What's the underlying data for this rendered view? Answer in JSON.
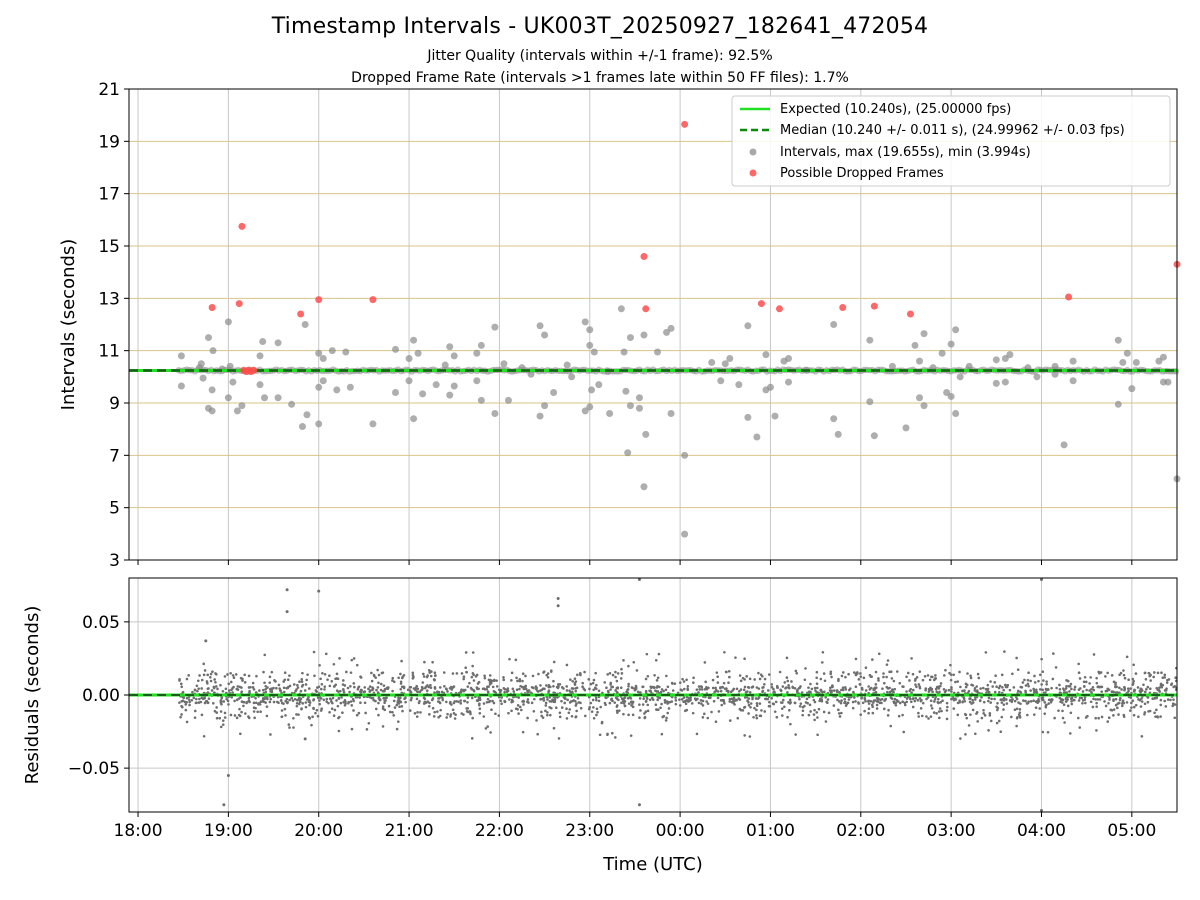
{
  "title": "Timestamp Intervals - UK003T_20250927_182641_472054",
  "subtitle_1": "Jitter Quality (intervals within +/-1 frame): 92.5%",
  "subtitle_2": "Dropped Frame Rate (intervals >1 frames late within 50 FF files): 1.7%",
  "colors": {
    "expected": "#22e022",
    "median": "#0a8a0a",
    "intervals": "#8c8c8c",
    "dropped": "#ff4d4d",
    "hgrid": "#d8c486",
    "vgrid": "#c8c8c8",
    "residual": "#6e6e6e"
  },
  "chart_data": [
    {
      "type": "scatter",
      "name": "intervals",
      "title": "Timestamp Intervals - UK003T_20250927_182641_472054",
      "xlabel": "",
      "ylabel": "Intervals (seconds)",
      "ylim": [
        3,
        21
      ],
      "yticks": [
        3,
        5,
        7,
        9,
        11,
        13,
        15,
        17,
        19,
        21
      ],
      "xlim_hours": [
        17.9,
        29.5
      ],
      "x_tick_hours": [
        18,
        19,
        20,
        21,
        22,
        23,
        24,
        25,
        26,
        27,
        28,
        29
      ],
      "grid": true,
      "legend_position": "top-right",
      "legend": [
        "Expected (10.240s), (25.00000 fps)",
        "Median (10.240 +/- 0.011 s), (24.99962 +/- 0.03 fps)",
        "Intervals, max (19.655s), min (3.994s)",
        "Possible Dropped Frames"
      ],
      "expected": 10.24,
      "median": 10.24,
      "series": [
        {
          "name": "Intervals",
          "points": [
            [
              18.48,
              10.8
            ],
            [
              18.48,
              9.65
            ],
            [
              18.68,
              10.35
            ],
            [
              18.7,
              10.5
            ],
            [
              18.72,
              9.95
            ],
            [
              18.78,
              11.5
            ],
            [
              18.78,
              8.8
            ],
            [
              18.82,
              8.7
            ],
            [
              18.82,
              9.5
            ],
            [
              18.83,
              11.0
            ],
            [
              18.93,
              10.3
            ],
            [
              19.0,
              9.2
            ],
            [
              19.0,
              12.1
            ],
            [
              19.02,
              10.4
            ],
            [
              19.05,
              9.8
            ],
            [
              19.1,
              8.7
            ],
            [
              19.15,
              8.9
            ],
            [
              19.35,
              10.8
            ],
            [
              19.35,
              9.7
            ],
            [
              19.38,
              11.35
            ],
            [
              19.4,
              9.2
            ],
            [
              19.55,
              11.3
            ],
            [
              19.55,
              9.2
            ],
            [
              19.7,
              8.95
            ],
            [
              19.82,
              8.1
            ],
            [
              19.85,
              12.0
            ],
            [
              19.87,
              8.55
            ],
            [
              20.0,
              10.9
            ],
            [
              20.0,
              9.6
            ],
            [
              20.0,
              8.2
            ],
            [
              20.05,
              10.7
            ],
            [
              20.05,
              9.85
            ],
            [
              20.15,
              11.0
            ],
            [
              20.2,
              9.5
            ],
            [
              20.3,
              10.95
            ],
            [
              20.35,
              9.6
            ],
            [
              20.6,
              8.2
            ],
            [
              20.85,
              11.05
            ],
            [
              20.85,
              9.4
            ],
            [
              21.0,
              10.7
            ],
            [
              21.0,
              9.85
            ],
            [
              21.05,
              11.4
            ],
            [
              21.05,
              8.4
            ],
            [
              21.1,
              10.9
            ],
            [
              21.15,
              9.35
            ],
            [
              21.3,
              9.7
            ],
            [
              21.4,
              10.45
            ],
            [
              21.45,
              11.15
            ],
            [
              21.45,
              9.3
            ],
            [
              21.5,
              10.8
            ],
            [
              21.5,
              9.65
            ],
            [
              21.75,
              10.9
            ],
            [
              21.75,
              9.85
            ],
            [
              21.8,
              11.2
            ],
            [
              21.8,
              9.1
            ],
            [
              21.95,
              11.9
            ],
            [
              21.95,
              8.6
            ],
            [
              22.05,
              10.5
            ],
            [
              22.1,
              9.1
            ],
            [
              22.25,
              10.35
            ],
            [
              22.35,
              10.1
            ],
            [
              22.45,
              11.95
            ],
            [
              22.45,
              8.5
            ],
            [
              22.5,
              11.6
            ],
            [
              22.5,
              8.9
            ],
            [
              22.6,
              9.4
            ],
            [
              22.75,
              10.45
            ],
            [
              22.8,
              10.0
            ],
            [
              22.95,
              12.1
            ],
            [
              22.95,
              8.7
            ],
            [
              23.0,
              11.8
            ],
            [
              23.0,
              8.85
            ],
            [
              23.0,
              11.2
            ],
            [
              23.02,
              9.5
            ],
            [
              23.05,
              10.95
            ],
            [
              23.1,
              9.7
            ],
            [
              23.2,
              10.2
            ],
            [
              23.22,
              8.6
            ],
            [
              23.35,
              12.6
            ],
            [
              23.38,
              10.95
            ],
            [
              23.4,
              9.45
            ],
            [
              23.45,
              11.5
            ],
            [
              23.45,
              8.9
            ],
            [
              23.55,
              9.2
            ],
            [
              23.55,
              8.8
            ],
            [
              23.6,
              11.6
            ],
            [
              23.62,
              7.8
            ],
            [
              23.6,
              5.8
            ],
            [
              23.42,
              7.1
            ],
            [
              23.75,
              10.95
            ],
            [
              23.85,
              11.7
            ],
            [
              23.9,
              8.6
            ],
            [
              23.9,
              11.85
            ],
            [
              24.05,
              7.0
            ],
            [
              24.05,
              3.99
            ],
            [
              24.35,
              10.55
            ],
            [
              24.45,
              9.85
            ],
            [
              24.5,
              10.5
            ],
            [
              24.55,
              10.7
            ],
            [
              24.65,
              9.7
            ],
            [
              24.75,
              11.95
            ],
            [
              24.75,
              8.45
            ],
            [
              24.85,
              7.7
            ],
            [
              24.95,
              9.5
            ],
            [
              24.95,
              10.85
            ],
            [
              25.0,
              9.6
            ],
            [
              25.05,
              8.5
            ],
            [
              25.15,
              10.6
            ],
            [
              25.2,
              10.7
            ],
            [
              25.2,
              9.8
            ],
            [
              25.4,
              10.25
            ],
            [
              25.7,
              12.0
            ],
            [
              25.7,
              8.4
            ],
            [
              25.75,
              7.8
            ],
            [
              26.1,
              11.4
            ],
            [
              26.1,
              9.05
            ],
            [
              26.15,
              7.75
            ],
            [
              26.35,
              10.4
            ],
            [
              26.5,
              8.05
            ],
            [
              26.6,
              11.2
            ],
            [
              26.65,
              9.2
            ],
            [
              26.65,
              10.6
            ],
            [
              26.7,
              11.65
            ],
            [
              26.7,
              8.9
            ],
            [
              26.8,
              10.35
            ],
            [
              26.9,
              10.9
            ],
            [
              26.95,
              9.4
            ],
            [
              27.0,
              11.25
            ],
            [
              27.0,
              9.25
            ],
            [
              27.05,
              11.8
            ],
            [
              27.05,
              8.6
            ],
            [
              27.1,
              10.0
            ],
            [
              27.2,
              10.4
            ],
            [
              27.5,
              10.65
            ],
            [
              27.5,
              9.75
            ],
            [
              27.6,
              9.8
            ],
            [
              27.6,
              10.7
            ],
            [
              27.65,
              10.85
            ],
            [
              27.85,
              10.35
            ],
            [
              27.95,
              10.0
            ],
            [
              28.15,
              10.4
            ],
            [
              28.15,
              10.1
            ],
            [
              28.25,
              7.4
            ],
            [
              28.35,
              10.6
            ],
            [
              28.35,
              9.85
            ],
            [
              28.85,
              11.4
            ],
            [
              28.85,
              8.95
            ],
            [
              28.9,
              10.55
            ],
            [
              28.95,
              10.9
            ],
            [
              29.0,
              9.55
            ],
            [
              29.05,
              10.55
            ],
            [
              29.3,
              10.6
            ],
            [
              29.35,
              10.75
            ],
            [
              29.35,
              9.8
            ],
            [
              29.4,
              9.8
            ],
            [
              29.5,
              6.1
            ]
          ]
        },
        {
          "name": "Possible Dropped Frames",
          "points": [
            [
              18.82,
              12.65
            ],
            [
              19.12,
              12.8
            ],
            [
              19.15,
              15.75
            ],
            [
              19.17,
              10.25
            ],
            [
              19.2,
              10.2
            ],
            [
              19.22,
              10.25
            ],
            [
              19.25,
              10.2
            ],
            [
              19.28,
              10.25
            ],
            [
              19.8,
              12.4
            ],
            [
              20.0,
              12.95
            ],
            [
              20.6,
              12.95
            ],
            [
              23.6,
              14.6
            ],
            [
              23.62,
              12.6
            ],
            [
              24.05,
              19.65
            ],
            [
              24.9,
              12.8
            ],
            [
              25.1,
              12.6
            ],
            [
              25.8,
              12.65
            ],
            [
              26.15,
              12.7
            ],
            [
              26.55,
              12.4
            ],
            [
              28.3,
              13.05
            ],
            [
              29.5,
              14.3
            ]
          ]
        }
      ]
    },
    {
      "type": "scatter",
      "name": "residuals",
      "xlabel": "Time (UTC)",
      "ylabel": "Residuals (seconds)",
      "ylim": [
        -0.08,
        0.08
      ],
      "yticks": [
        -0.05,
        0.0,
        0.05
      ],
      "ytick_labels": [
        "−0.05",
        "0.00",
        "0.05"
      ],
      "xlim_hours": [
        17.9,
        29.5
      ],
      "x_tick_hours": [
        18,
        19,
        20,
        21,
        22,
        23,
        24,
        25,
        26,
        27,
        28,
        29
      ],
      "x_tick_labels": [
        "18:00",
        "19:00",
        "20:00",
        "21:00",
        "22:00",
        "23:00",
        "00:00",
        "01:00",
        "02:00",
        "03:00",
        "04:00",
        "05:00"
      ],
      "grid": true,
      "zero_line": 0.0,
      "series_start_hour": 18.45,
      "spread": 0.016,
      "outliers": [
        [
          19.65,
          0.072
        ],
        [
          19.65,
          0.057
        ],
        [
          20.0,
          0.071
        ],
        [
          22.65,
          0.066
        ],
        [
          22.65,
          0.061
        ],
        [
          23.55,
          0.079
        ],
        [
          23.55,
          -0.075
        ],
        [
          18.95,
          -0.075
        ],
        [
          19.0,
          -0.055
        ],
        [
          28.0,
          0.079
        ],
        [
          28.0,
          -0.079
        ],
        [
          18.75,
          0.037
        ],
        [
          19.85,
          -0.03
        ]
      ]
    }
  ]
}
